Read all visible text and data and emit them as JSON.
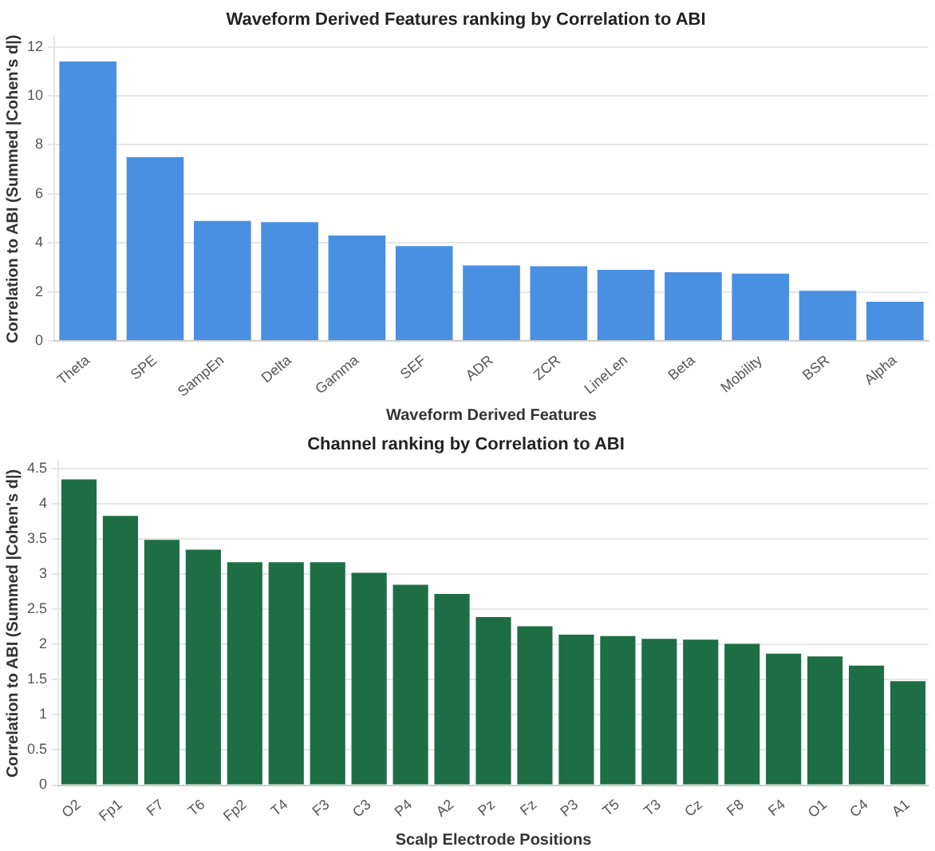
{
  "chart_data": [
    {
      "type": "bar",
      "title": "Waveform Derived Features ranking by Correlation to ABI",
      "xlabel": "Waveform Derived Features",
      "ylabel": "Correlation to ABI (Summed |Cohen's d|)",
      "categories": [
        "Theta",
        "SPE",
        "SampEn",
        "Delta",
        "Gamma",
        "SEF",
        "ADR",
        "ZCR",
        "LineLen",
        "Beta",
        "Mobility",
        "BSR",
        "Alpha"
      ],
      "values": [
        11.4,
        7.5,
        4.9,
        4.85,
        4.3,
        3.87,
        3.08,
        3.05,
        2.9,
        2.8,
        2.75,
        2.05,
        1.6
      ],
      "color": "#4a90e2",
      "ylim": [
        0,
        12.4
      ],
      "yticks": [
        0,
        2,
        4,
        6,
        8,
        10,
        12
      ],
      "grid": "y",
      "legend": false
    },
    {
      "type": "bar",
      "title": "Channel ranking by Correlation to ABI",
      "xlabel": "Scalp Electrode Positions",
      "ylabel": "Correlation to ABI (Summed |Cohen's d|)",
      "categories": [
        "O2",
        "Fp1",
        "F7",
        "T6",
        "Fp2",
        "T4",
        "F3",
        "C3",
        "P4",
        "A2",
        "Pz",
        "Fz",
        "P3",
        "T5",
        "T3",
        "Cz",
        "F8",
        "F4",
        "O1",
        "C4",
        "A1"
      ],
      "values": [
        4.35,
        3.83,
        3.49,
        3.35,
        3.17,
        3.17,
        3.17,
        3.02,
        2.85,
        2.72,
        2.39,
        2.26,
        2.14,
        2.12,
        2.08,
        2.07,
        2.01,
        1.87,
        1.83,
        1.7,
        1.48
      ],
      "color": "#1e6e45",
      "ylim": [
        0,
        4.6
      ],
      "yticks": [
        0,
        0.5,
        1,
        1.5,
        2,
        2.5,
        3,
        3.5,
        4,
        4.5
      ],
      "grid": "y",
      "legend": false
    }
  ]
}
